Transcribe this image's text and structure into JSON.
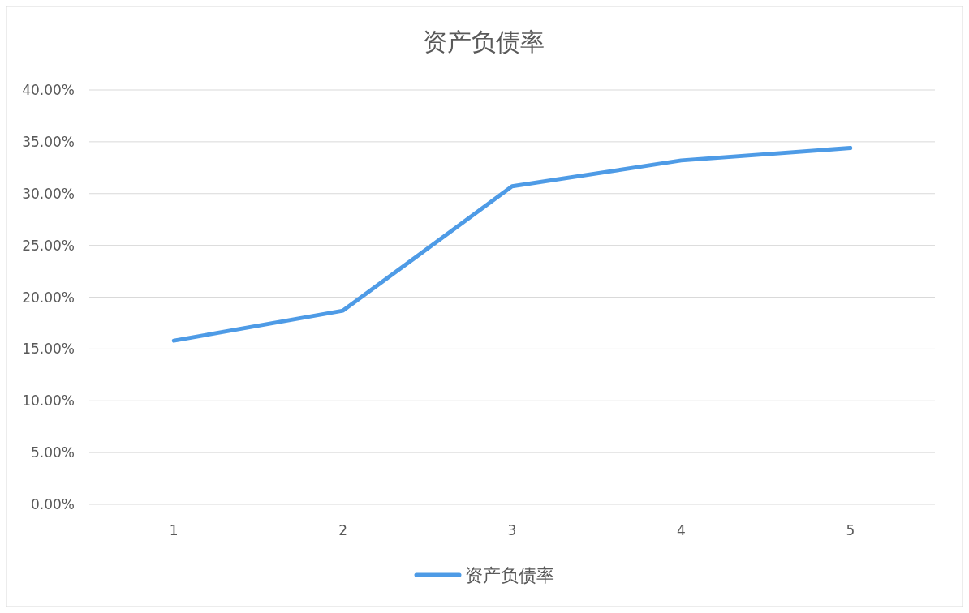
{
  "chart_data": {
    "type": "line",
    "title": "资产负债率",
    "categories": [
      "1",
      "2",
      "3",
      "4",
      "5"
    ],
    "series": [
      {
        "name": "资产负债率",
        "color": "#4e9be6",
        "values": [
          15.8,
          18.7,
          30.7,
          33.2,
          34.4
        ]
      }
    ],
    "ylim": [
      0,
      40
    ],
    "yticks": [
      {
        "value": 0,
        "label": "0.00%"
      },
      {
        "value": 5,
        "label": "5.00%"
      },
      {
        "value": 10,
        "label": "10.00%"
      },
      {
        "value": 15,
        "label": "15.00%"
      },
      {
        "value": 20,
        "label": "20.00%"
      },
      {
        "value": 25,
        "label": "25.00%"
      },
      {
        "value": 30,
        "label": "30.00%"
      },
      {
        "value": 35,
        "label": "35.00%"
      },
      {
        "value": 40,
        "label": "40.00%"
      }
    ],
    "grid": "y",
    "legend": "bottom"
  }
}
